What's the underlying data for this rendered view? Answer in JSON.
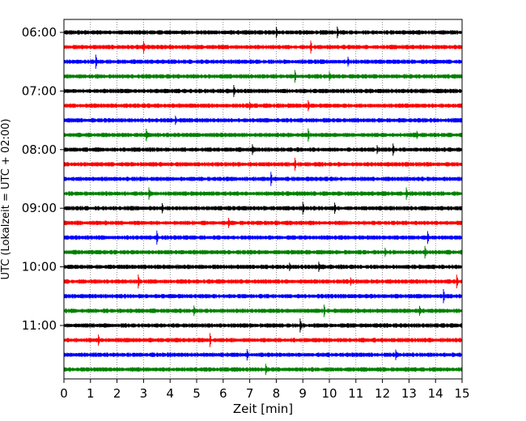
{
  "chart_data": {
    "type": "line",
    "subtype": "helicorder",
    "xlabel": "Zeit  [min]",
    "ylabel": "UTC (Lokalzeit = UTC + 02:00)",
    "xlim": [
      0,
      15
    ],
    "x_ticks": [
      0,
      1,
      2,
      3,
      4,
      5,
      6,
      7,
      8,
      9,
      10,
      11,
      12,
      13,
      14,
      15
    ],
    "y_tick_labels": [
      "06:00",
      "07:00",
      "08:00",
      "09:00",
      "10:00",
      "11:00"
    ],
    "y_tick_rows": [
      0,
      4,
      8,
      12,
      16,
      20
    ],
    "grid": "vertical dotted at each minute",
    "rows_per_hour": 4,
    "row_minutes": 15,
    "colors": [
      "#000000",
      "#ff0000",
      "#0000ff",
      "#008000"
    ],
    "series": [
      {
        "start": "06:00",
        "color": "#000000",
        "spikes": [
          8.0,
          10.3
        ]
      },
      {
        "start": "06:15",
        "color": "#ff0000",
        "spikes": [
          3.0,
          9.3
        ]
      },
      {
        "start": "06:30",
        "color": "#0000ff",
        "spikes": [
          1.2,
          10.7
        ]
      },
      {
        "start": "06:45",
        "color": "#008000",
        "spikes": [
          8.7,
          10.0
        ]
      },
      {
        "start": "07:00",
        "color": "#000000",
        "spikes": [
          6.4
        ]
      },
      {
        "start": "07:15",
        "color": "#ff0000",
        "spikes": [
          7.0,
          9.2
        ]
      },
      {
        "start": "07:30",
        "color": "#0000ff",
        "spikes": [
          4.2
        ]
      },
      {
        "start": "07:45",
        "color": "#008000",
        "spikes": [
          3.1,
          9.2,
          13.3
        ]
      },
      {
        "start": "08:00",
        "color": "#000000",
        "spikes": [
          7.1,
          11.8,
          12.4
        ]
      },
      {
        "start": "08:15",
        "color": "#ff0000",
        "spikes": [
          8.7
        ]
      },
      {
        "start": "08:30",
        "color": "#0000ff",
        "spikes": [
          7.8
        ]
      },
      {
        "start": "08:45",
        "color": "#008000",
        "spikes": [
          3.2,
          12.9
        ]
      },
      {
        "start": "09:00",
        "color": "#000000",
        "spikes": [
          3.7,
          9.0,
          10.2
        ]
      },
      {
        "start": "09:15",
        "color": "#ff0000",
        "spikes": [
          6.2
        ]
      },
      {
        "start": "09:30",
        "color": "#0000ff",
        "spikes": [
          3.5,
          13.7
        ]
      },
      {
        "start": "09:45",
        "color": "#008000",
        "spikes": [
          12.1,
          13.6
        ]
      },
      {
        "start": "10:00",
        "color": "#000000",
        "spikes": [
          8.5,
          9.6
        ]
      },
      {
        "start": "10:15",
        "color": "#ff0000",
        "spikes": [
          2.8,
          10.8,
          14.8
        ]
      },
      {
        "start": "10:30",
        "color": "#0000ff",
        "spikes": [
          14.3
        ]
      },
      {
        "start": "10:45",
        "color": "#008000",
        "spikes": [
          4.9,
          9.8,
          13.4
        ]
      },
      {
        "start": "11:00",
        "color": "#000000",
        "spikes": [
          8.9
        ]
      },
      {
        "start": "11:15",
        "color": "#ff0000",
        "spikes": [
          1.3,
          5.5
        ]
      },
      {
        "start": "11:30",
        "color": "#0000ff",
        "spikes": [
          6.9,
          12.5
        ]
      },
      {
        "start": "11:45",
        "color": "#008000",
        "spikes": [
          7.6
        ]
      }
    ]
  }
}
